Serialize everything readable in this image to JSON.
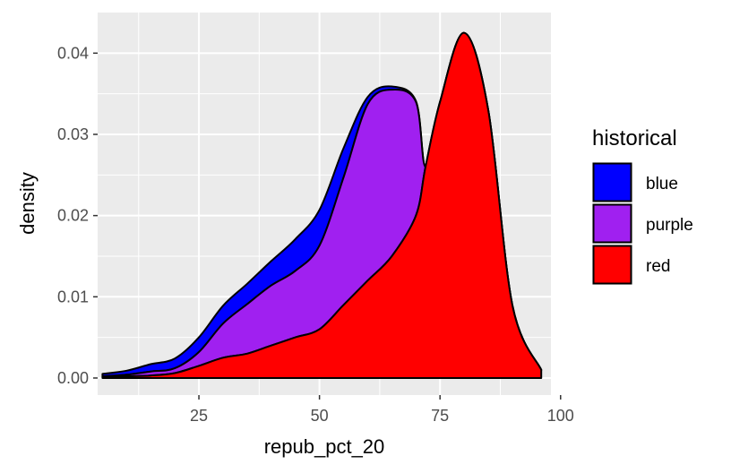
{
  "chart_data": {
    "type": "area",
    "subtype": "stacked density",
    "xlabel": "repub_pct_20",
    "ylabel": "density",
    "xlim": [
      4,
      98
    ],
    "ylim": [
      -0.0021,
      0.045
    ],
    "x_ticks": [
      25,
      50,
      75,
      100
    ],
    "y_ticks": [
      0.0,
      0.01,
      0.02,
      0.03,
      0.04
    ],
    "y_tick_labels": [
      "0.00",
      "0.01",
      "0.02",
      "0.03",
      "0.04"
    ],
    "grid": true,
    "legend": {
      "title": "historical",
      "placement": "right"
    },
    "x": [
      5,
      10,
      15,
      20,
      25,
      30,
      35,
      40,
      45,
      50,
      55,
      60,
      65,
      70,
      72,
      75,
      80,
      85,
      90,
      96
    ],
    "series": [
      {
        "name": "blue",
        "color": "#0000ff",
        "values": [
          0.0003,
          0.0005,
          0.0009,
          0.0012,
          0.0018,
          0.0022,
          0.0025,
          0.003,
          0.0039,
          0.0044,
          0.0036,
          0.0009,
          0.0004,
          0.0001,
          0.0,
          0.0,
          0.0,
          0.0,
          0.0,
          0.0
        ]
      },
      {
        "name": "purple",
        "color": "#a020f0",
        "values": [
          0.0001,
          0.0002,
          0.0005,
          0.0006,
          0.0017,
          0.0042,
          0.0061,
          0.0074,
          0.0082,
          0.0103,
          0.0157,
          0.0217,
          0.0205,
          0.014,
          0.0,
          0.0,
          0.0,
          0.0,
          0.0,
          0.0
        ]
      },
      {
        "name": "red",
        "color": "#ff0000",
        "values": [
          0.0001,
          0.0002,
          0.0003,
          0.0006,
          0.0015,
          0.0025,
          0.003,
          0.004,
          0.005,
          0.006,
          0.009,
          0.012,
          0.015,
          0.02,
          0.026,
          0.034,
          0.0425,
          0.033,
          0.009,
          0.001
        ]
      }
    ]
  }
}
